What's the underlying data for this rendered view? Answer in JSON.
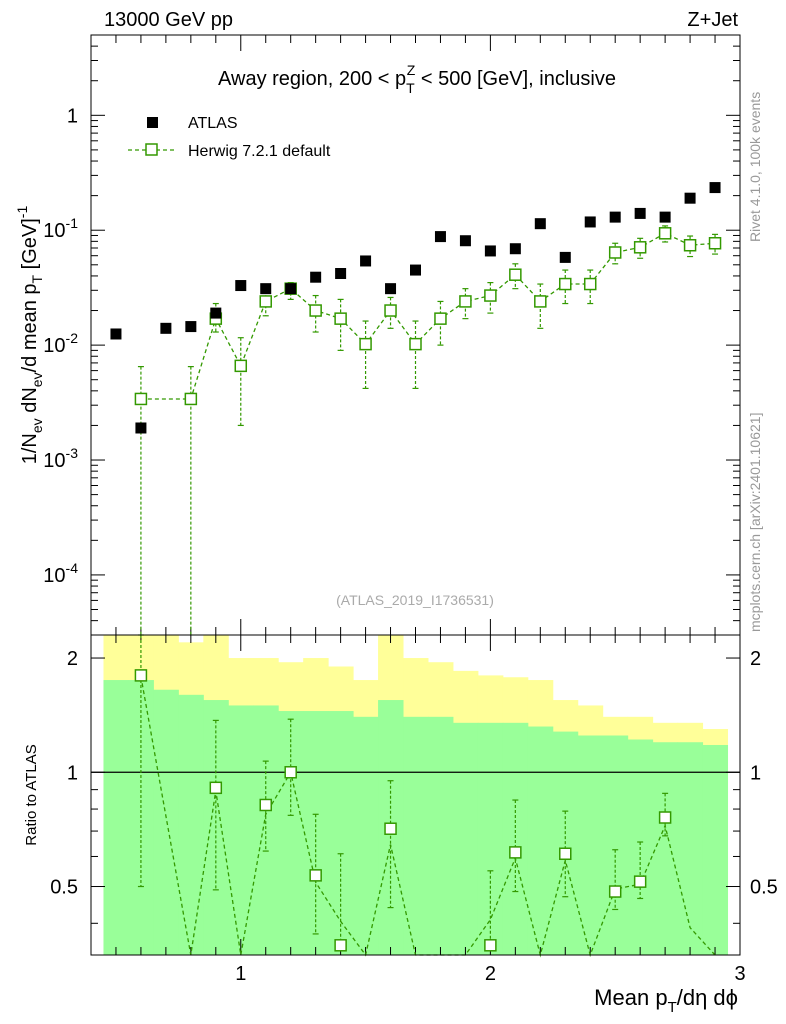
{
  "header": {
    "left": "13000 GeV pp",
    "right": "Z+Jet"
  },
  "side_labels": {
    "rivet": "Rivet 4.1.0,  100k events",
    "mcplots": "mcplots.cern.ch [arXiv:2401.10621]"
  },
  "chart_data": {
    "type": "scatter",
    "title": "Away region, 200 < p_T^Z < 500 [GeV], inclusive",
    "watermark": "(ATLAS_2019_I1736531)",
    "xlabel": "Mean p_T/dη dϕ",
    "ylabel": "1/N_ev dN_ev/d mean p_T [GeV]^-1",
    "ratio_ylabel": "Ratio to ATLAS",
    "xlim": [
      0.4,
      3.0
    ],
    "ylim": [
      3e-05,
      5
    ],
    "yscale": "log",
    "ratio_ylim": [
      0.33,
      2.3
    ],
    "ratio_yscale": "log",
    "x_ticks": [
      "1",
      "2",
      "3"
    ],
    "y_ticks": [
      "10^-4",
      "10^-3",
      "10^-2",
      "10^-1",
      "1"
    ],
    "ratio_ticks": [
      "0.5",
      "1",
      "2"
    ],
    "legend": [
      "ATLAS",
      "Herwig 7.2.1 default"
    ],
    "series": [
      {
        "name": "ATLAS",
        "color": "#000000",
        "x": [
          0.5,
          0.6,
          0.7,
          0.8,
          0.9,
          1.0,
          1.1,
          1.2,
          1.3,
          1.4,
          1.5,
          1.6,
          1.7,
          1.8,
          1.9,
          2.0,
          2.1,
          2.2,
          2.3,
          2.4,
          2.5,
          2.6,
          2.7,
          2.8,
          2.9
        ],
        "y": [
          0.0125,
          0.0019,
          0.014,
          0.0145,
          0.019,
          0.033,
          0.031,
          0.031,
          0.039,
          0.042,
          0.054,
          0.031,
          0.045,
          0.088,
          0.081,
          0.066,
          0.069,
          0.114,
          0.058,
          0.118,
          0.13,
          0.14,
          0.13,
          0.19,
          0.235
        ]
      },
      {
        "name": "Herwig 7.2.1 default",
        "color": "#339900",
        "x": [
          0.6,
          0.8,
          0.9,
          1.0,
          1.1,
          1.2,
          1.3,
          1.4,
          1.5,
          1.6,
          1.7,
          1.8,
          1.9,
          2.0,
          2.1,
          2.2,
          2.3,
          2.4,
          2.5,
          2.6,
          2.7,
          2.8,
          2.9
        ],
        "y": [
          0.0034,
          0.0034,
          0.017,
          0.0066,
          0.024,
          0.031,
          0.02,
          0.017,
          0.0102,
          0.02,
          0.0102,
          0.017,
          0.024,
          0.027,
          0.041,
          0.024,
          0.034,
          0.034,
          0.064,
          0.071,
          0.094,
          0.074,
          0.077
        ],
        "err_low": [
          0.0034,
          0.0034,
          0.004,
          0.0046,
          0.006,
          0.006,
          0.007,
          0.008,
          0.006,
          0.006,
          0.006,
          0.007,
          0.007,
          0.008,
          0.01,
          0.01,
          0.011,
          0.011,
          0.013,
          0.014,
          0.015,
          0.015,
          0.015
        ],
        "err_high": [
          0.0031,
          0.0031,
          0.006,
          0.005,
          0.006,
          0.004,
          0.007,
          0.008,
          0.006,
          0.006,
          0.006,
          0.007,
          0.007,
          0.008,
          0.01,
          0.01,
          0.011,
          0.011,
          0.013,
          0.014,
          0.015,
          0.015,
          0.015
        ]
      }
    ],
    "ratio": {
      "x": [
        0.6,
        0.9,
        1.1,
        1.2,
        1.3,
        1.4,
        1.6,
        2.0,
        2.1,
        2.3,
        2.5,
        2.6,
        2.7
      ],
      "y": [
        1.8,
        0.91,
        0.82,
        1.0,
        0.535,
        0.35,
        0.71,
        0.35,
        0.615,
        0.61,
        0.485,
        0.515,
        0.76
      ],
      "err_low": [
        1.3,
        0.42,
        0.2,
        0.23,
        0.16,
        0.0,
        0.27,
        0.0,
        0.13,
        0.14,
        0.05,
        0.05,
        0.08
      ],
      "err_high": [
        0.55,
        0.46,
        0.25,
        0.38,
        0.24,
        0.26,
        0.24,
        0.2,
        0.23,
        0.18,
        0.14,
        0.14,
        0.12
      ]
    },
    "uncertainty_bands": {
      "edges": [
        0.45,
        0.55,
        0.65,
        0.75,
        0.85,
        0.95,
        1.05,
        1.15,
        1.25,
        1.35,
        1.45,
        1.55,
        1.65,
        1.75,
        1.85,
        1.95,
        2.05,
        2.15,
        2.25,
        2.35,
        2.45,
        2.55,
        2.65,
        2.75,
        2.85,
        2.95
      ],
      "yellow_low": [
        0.33,
        0.33,
        0.33,
        0.33,
        0.33,
        0.33,
        0.54,
        0.53,
        0.5,
        0.4,
        0.37,
        0.33,
        0.33,
        0.57,
        0.52,
        0.48,
        0.45,
        0.39,
        0.37,
        0.37,
        0.33,
        0.33,
        0.45,
        0.42,
        0.4
      ],
      "yellow_high": [
        2.3,
        2.3,
        2.3,
        2.2,
        2.3,
        2.0,
        2.0,
        1.95,
        2.0,
        1.9,
        1.75,
        2.3,
        2.0,
        1.95,
        1.85,
        1.8,
        1.78,
        1.75,
        1.55,
        1.5,
        1.4,
        1.4,
        1.35,
        1.35,
        1.3
      ],
      "green_low": [
        0.33,
        0.33,
        0.33,
        0.33,
        0.33,
        0.33,
        0.33,
        0.33,
        0.33,
        0.33,
        0.33,
        0.33,
        0.33,
        0.33,
        0.33,
        0.33,
        0.33,
        0.33,
        0.33,
        0.33,
        0.33,
        0.33,
        0.33,
        0.33,
        0.33
      ],
      "green_high": [
        1.75,
        1.75,
        1.65,
        1.6,
        1.55,
        1.5,
        1.5,
        1.45,
        1.45,
        1.45,
        1.4,
        1.55,
        1.4,
        1.4,
        1.35,
        1.35,
        1.35,
        1.32,
        1.28,
        1.25,
        1.25,
        1.22,
        1.2,
        1.2,
        1.18
      ]
    }
  }
}
